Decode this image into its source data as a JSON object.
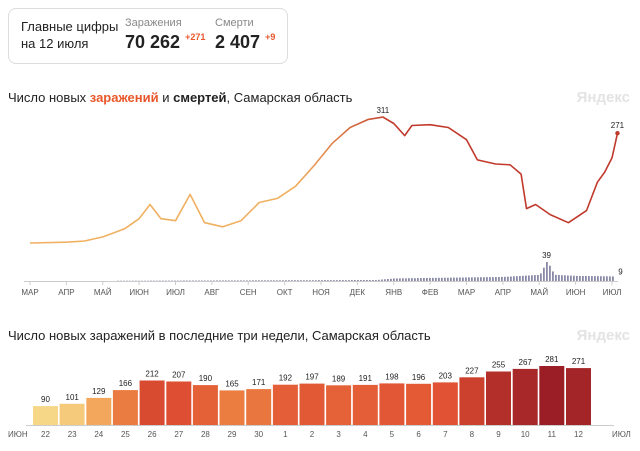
{
  "summary": {
    "label": "Главные цифры на 12 июля",
    "cases": {
      "caption": "Заражения",
      "value": "70 262",
      "delta": "+271"
    },
    "deaths": {
      "caption": "Смерти",
      "value": "2 407",
      "delta": "+9"
    }
  },
  "watermark": "Яндекс",
  "colors": {
    "cases_light": "#f0b060",
    "cases_dark": "#c0392b",
    "deaths": "#8a8aa8",
    "accent": "#e8572a",
    "axis": "#cccccc"
  },
  "chart_data": [
    {
      "type": "line",
      "title_parts": [
        "Число новых ",
        "заражений",
        " и ",
        "смертей",
        ", Самарская область"
      ],
      "months": [
        "МАР",
        "АПР",
        "МАЙ",
        "ИЮН",
        "ИЮЛ",
        "АВГ",
        "СЕН",
        "ОКТ",
        "НОЯ",
        "ДЕК",
        "ЯНВ",
        "ФЕВ",
        "МАР",
        "АПР",
        "МАЙ",
        "ИЮН",
        "ИЮЛ"
      ],
      "series": [
        {
          "name": "Заражения",
          "points": [
            [
              0,
              0
            ],
            [
              1,
              2
            ],
            [
              1.5,
              5
            ],
            [
              2,
              15
            ],
            [
              2.3,
              25
            ],
            [
              2.6,
              35
            ],
            [
              3,
              60
            ],
            [
              3.3,
              95
            ],
            [
              3.6,
              60
            ],
            [
              4,
              55
            ],
            [
              4.4,
              120
            ],
            [
              4.8,
              50
            ],
            [
              5.3,
              40
            ],
            [
              5.8,
              55
            ],
            [
              6.3,
              100
            ],
            [
              6.8,
              110
            ],
            [
              7.3,
              140
            ],
            [
              7.8,
              190
            ],
            [
              8.3,
              245
            ],
            [
              8.8,
              285
            ],
            [
              9.3,
              305
            ],
            [
              9.7,
              311
            ],
            [
              10,
              295
            ],
            [
              10.3,
              265
            ],
            [
              10.5,
              290
            ],
            [
              11,
              292
            ],
            [
              11.5,
              285
            ],
            [
              12,
              255
            ],
            [
              12.3,
              205
            ],
            [
              12.8,
              195
            ],
            [
              13.2,
              193
            ],
            [
              13.5,
              170
            ],
            [
              13.65,
              85
            ],
            [
              13.9,
              95
            ],
            [
              14.3,
              70
            ],
            [
              14.8,
              50
            ],
            [
              15.3,
              80
            ],
            [
              15.6,
              150
            ],
            [
              15.8,
              175
            ],
            [
              16,
              210
            ],
            [
              16.15,
              271
            ]
          ]
        },
        {
          "name": "Смерти",
          "points": [
            [
              0,
              0
            ],
            [
              9.5,
              2
            ],
            [
              10,
              5
            ],
            [
              11,
              6
            ],
            [
              12,
              7
            ],
            [
              13,
              8
            ],
            [
              13.5,
              10
            ],
            [
              14,
              12
            ],
            [
              14.2,
              39
            ],
            [
              14.4,
              12
            ],
            [
              15,
              10
            ],
            [
              16,
              9
            ],
            [
              16.15,
              9
            ]
          ]
        }
      ],
      "annotations": [
        {
          "x": 9.7,
          "value": "311"
        },
        {
          "x": 16.15,
          "value": "271"
        },
        {
          "x": 14.2,
          "value": "39"
        },
        {
          "x": 16.15,
          "value": "9"
        }
      ]
    },
    {
      "type": "bar",
      "title": "Число новых заражений в последние три недели, Самарская область",
      "left_label": "ИЮН",
      "right_label": "ИЮЛ",
      "categories": [
        "22",
        "23",
        "24",
        "25",
        "26",
        "27",
        "28",
        "29",
        "30",
        "1",
        "2",
        "3",
        "4",
        "5",
        "6",
        "7",
        "8",
        "9",
        "10",
        "11",
        "12"
      ],
      "values": [
        90,
        101,
        129,
        166,
        212,
        207,
        190,
        165,
        171,
        192,
        197,
        189,
        191,
        198,
        196,
        203,
        227,
        255,
        267,
        281,
        271
      ],
      "weekend": [
        "26",
        "27",
        "3",
        "4",
        "10",
        "11"
      ]
    }
  ]
}
